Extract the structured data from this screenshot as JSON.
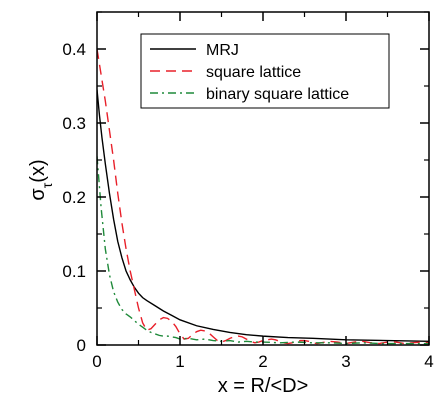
{
  "chart_data": {
    "type": "line",
    "title": "",
    "xlabel": "x = R/<D>",
    "ylabel_main": "σ",
    "ylabel_sub": "τ",
    "ylabel_tail": "(x)",
    "xlim": [
      0,
      4
    ],
    "ylim": [
      0,
      0.45
    ],
    "xticks": [
      0,
      1,
      2,
      3,
      4
    ],
    "xtick_labels": [
      "0",
      "1",
      "2",
      "3",
      "4"
    ],
    "yticks": [
      0,
      0.1,
      0.2,
      0.3,
      0.4
    ],
    "ytick_labels": [
      "0",
      "0.1",
      "0.2",
      "0.3",
      "0.4"
    ],
    "grid": false,
    "legend_position": "top-right",
    "series": [
      {
        "name": "MRJ",
        "color": "#000000",
        "dash": "solid",
        "x": [
          0.0,
          0.03,
          0.06,
          0.1,
          0.15,
          0.2,
          0.25,
          0.3,
          0.35,
          0.4,
          0.45,
          0.5,
          0.55,
          0.6,
          0.7,
          0.8,
          0.9,
          1.0,
          1.2,
          1.4,
          1.6,
          1.8,
          2.0,
          2.3,
          2.6,
          3.0,
          3.5,
          4.0
        ],
        "y": [
          0.345,
          0.31,
          0.28,
          0.245,
          0.205,
          0.17,
          0.14,
          0.118,
          0.1,
          0.088,
          0.078,
          0.07,
          0.064,
          0.06,
          0.053,
          0.046,
          0.04,
          0.034,
          0.026,
          0.021,
          0.017,
          0.014,
          0.012,
          0.01,
          0.009,
          0.007,
          0.006,
          0.005
        ]
      },
      {
        "name": "square lattice",
        "color": "#e8202a",
        "dash": "dashed",
        "x": [
          0.0,
          0.05,
          0.1,
          0.15,
          0.2,
          0.25,
          0.3,
          0.35,
          0.4,
          0.45,
          0.5,
          0.55,
          0.6,
          0.65,
          0.7,
          0.75,
          0.8,
          0.85,
          0.9,
          0.95,
          1.0,
          1.05,
          1.1,
          1.15,
          1.2,
          1.25,
          1.3,
          1.35,
          1.4,
          1.45,
          1.5,
          1.55,
          1.6,
          1.65,
          1.7,
          1.75,
          1.8,
          1.85,
          1.9,
          1.95,
          2.0,
          2.05,
          2.1,
          2.15,
          2.2,
          2.25,
          2.3,
          2.35,
          2.4,
          2.45,
          2.5,
          2.55,
          2.6,
          2.65,
          2.7,
          2.8,
          2.9,
          3.0,
          3.1,
          3.2,
          3.3,
          3.4,
          3.5,
          3.6,
          3.7,
          3.8,
          3.9,
          4.0
        ],
        "y": [
          0.4,
          0.365,
          0.33,
          0.29,
          0.25,
          0.205,
          0.165,
          0.13,
          0.1,
          0.075,
          0.05,
          0.03,
          0.02,
          0.022,
          0.028,
          0.034,
          0.037,
          0.036,
          0.032,
          0.025,
          0.015,
          0.008,
          0.009,
          0.014,
          0.018,
          0.02,
          0.019,
          0.016,
          0.011,
          0.006,
          0.004,
          0.006,
          0.009,
          0.011,
          0.012,
          0.011,
          0.008,
          0.005,
          0.003,
          0.004,
          0.006,
          0.007,
          0.008,
          0.007,
          0.005,
          0.003,
          0.002,
          0.003,
          0.005,
          0.006,
          0.006,
          0.005,
          0.003,
          0.002,
          0.003,
          0.005,
          0.004,
          0.002,
          0.004,
          0.005,
          0.003,
          0.002,
          0.004,
          0.004,
          0.002,
          0.003,
          0.004,
          0.003
        ]
      },
      {
        "name": "binary square lattice",
        "color": "#1f8a3a",
        "dash": "dashdot",
        "x": [
          0.0,
          0.05,
          0.1,
          0.15,
          0.2,
          0.25,
          0.3,
          0.35,
          0.4,
          0.45,
          0.5,
          0.55,
          0.6,
          0.65,
          0.7,
          0.75,
          0.8,
          0.85,
          0.9,
          0.95,
          1.0,
          1.1,
          1.2,
          1.3,
          1.4,
          1.5,
          1.6,
          1.7,
          1.8,
          1.9,
          2.0,
          2.2,
          2.4,
          2.6,
          2.8,
          3.0,
          3.2,
          3.4,
          3.6,
          3.8,
          4.0
        ],
        "y": [
          0.255,
          0.185,
          0.13,
          0.095,
          0.072,
          0.058,
          0.048,
          0.042,
          0.038,
          0.033,
          0.028,
          0.024,
          0.02,
          0.017,
          0.015,
          0.013,
          0.012,
          0.012,
          0.011,
          0.01,
          0.008,
          0.009,
          0.007,
          0.008,
          0.006,
          0.005,
          0.006,
          0.004,
          0.005,
          0.004,
          0.004,
          0.003,
          0.004,
          0.003,
          0.003,
          0.002,
          0.003,
          0.002,
          0.002,
          0.002,
          0.002
        ]
      }
    ]
  }
}
